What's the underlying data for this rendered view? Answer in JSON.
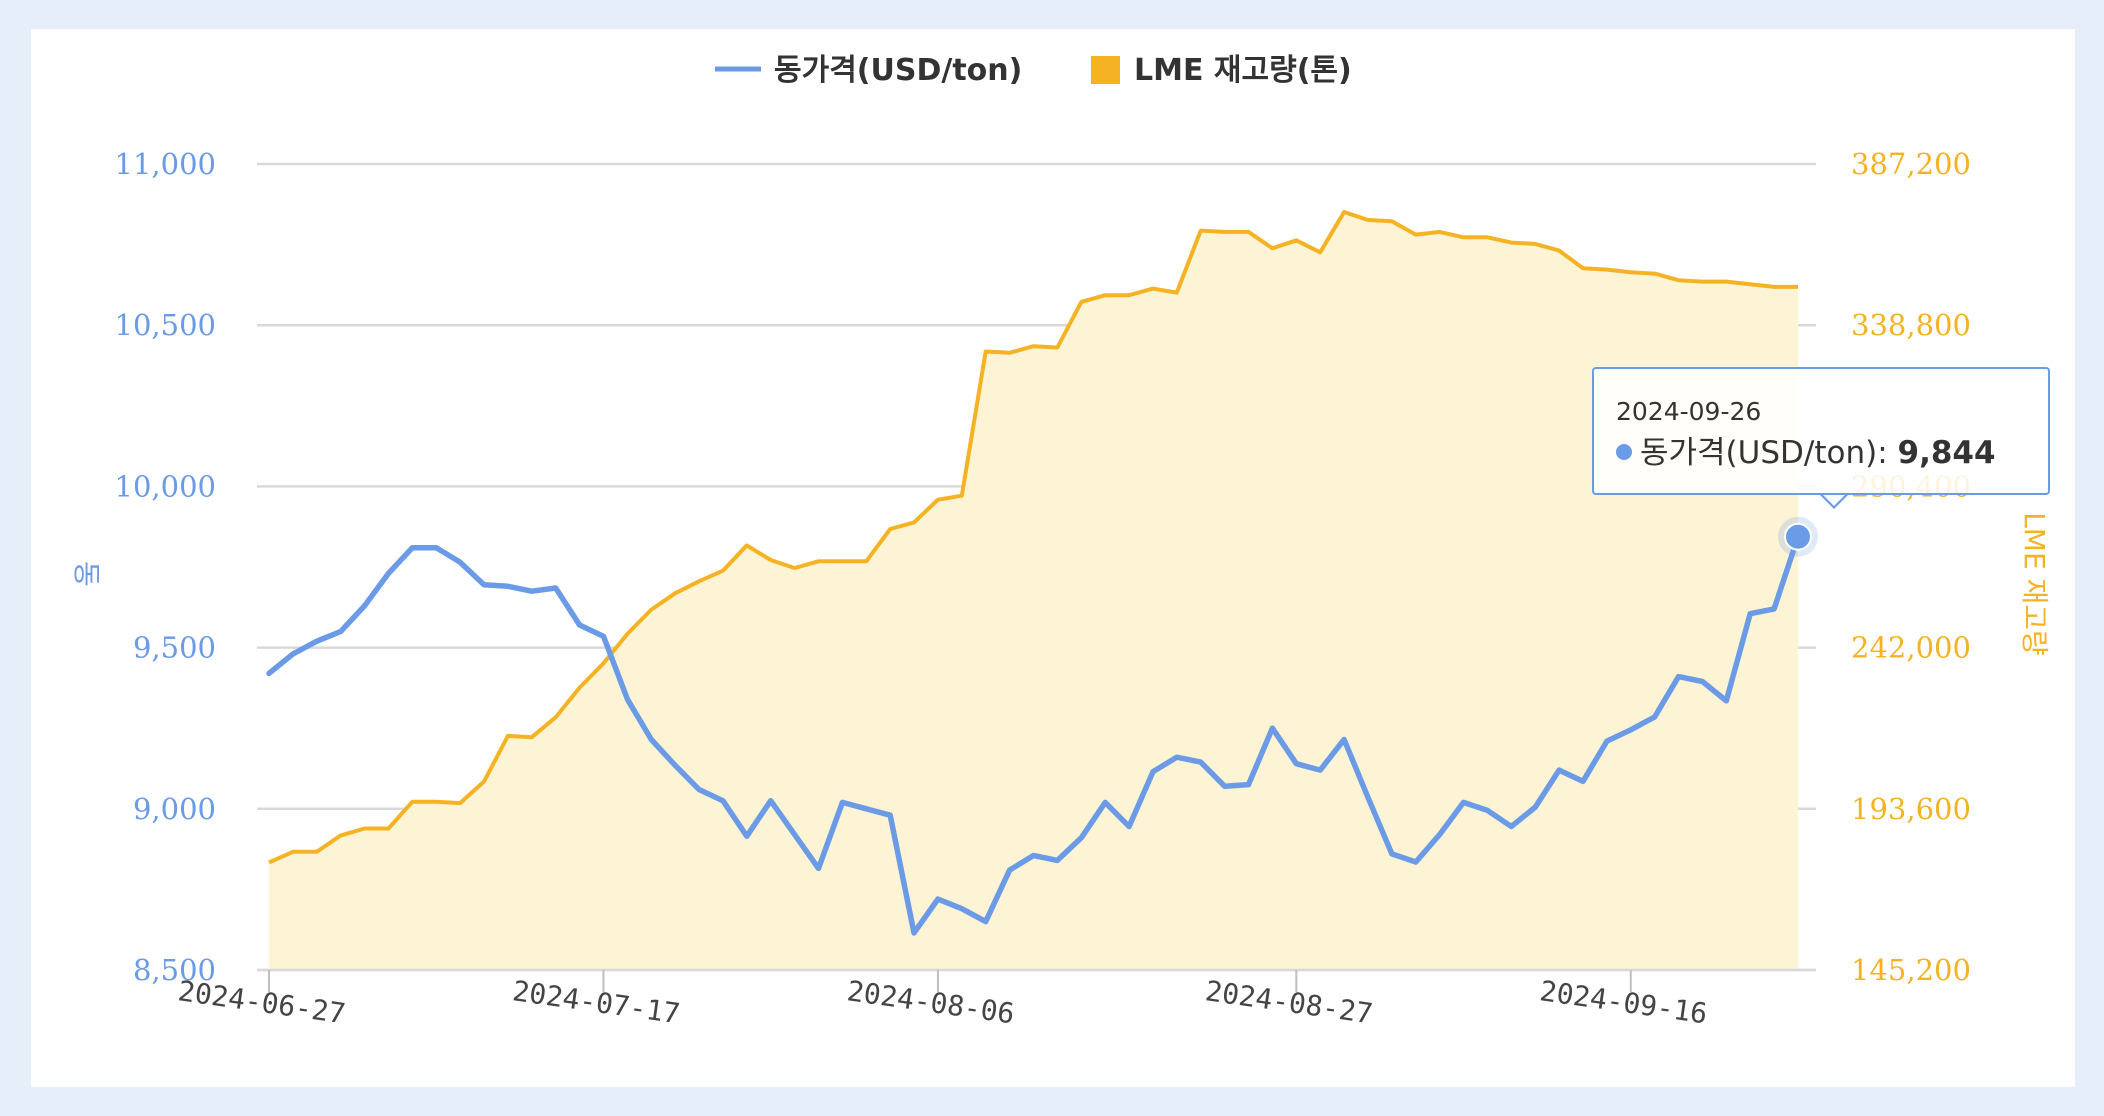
{
  "chart_data": {
    "type": "line",
    "legend": {
      "placement": "top-center",
      "items": [
        "동가격(USD/ton)",
        "LME 재고량(톤)"
      ]
    },
    "grid": true,
    "x_ticks": [
      "2024-06-27",
      "2024-07-17",
      "2024-08-06",
      "2024-08-27",
      "2024-09-16"
    ],
    "y_left": {
      "label": "동",
      "ticks": [
        "11,000",
        "10,500",
        "10,000",
        "9,500",
        "9,000",
        "8,500"
      ],
      "range": [
        8500,
        11000
      ],
      "color": "#6b9be6"
    },
    "y_right": {
      "label": "LME 재고량",
      "ticks": [
        "387,200",
        "338,800",
        "290,400",
        "242,000",
        "193,600",
        "145,200"
      ],
      "range": [
        145200,
        387200
      ],
      "color": "#f5b324"
    },
    "series": [
      {
        "name": "동가격(USD/ton)",
        "axis": "left",
        "type": "line",
        "color": "#6b9be6",
        "values": [
          9420,
          9480,
          9520,
          9550,
          9630,
          9730,
          9810,
          9810,
          9765,
          9695,
          9690,
          9675,
          9685,
          9570,
          9535,
          9340,
          9215,
          9135,
          9060,
          9025,
          8915,
          9025,
          8920,
          8815,
          9020,
          9000,
          8980,
          8615,
          8720,
          8690,
          8650,
          8810,
          8855,
          8840,
          8910,
          9020,
          8945,
          9115,
          9160,
          9145,
          9070,
          9075,
          9250,
          9140,
          9120,
          9215,
          9035,
          8860,
          8835,
          8920,
          9020,
          8995,
          8945,
          9005,
          9120,
          9085,
          9210,
          9245,
          9285,
          9410,
          9395,
          9335,
          9605,
          9620,
          9844
        ]
      },
      {
        "name": "LME 재고량(톤)",
        "axis": "right",
        "type": "area",
        "color": "#f5b324",
        "values": [
          177500,
          180700,
          180700,
          185600,
          187700,
          187700,
          195700,
          195700,
          195300,
          201800,
          215500,
          215100,
          221100,
          230000,
          237300,
          246100,
          253400,
          258300,
          261900,
          265100,
          272700,
          268300,
          265900,
          267900,
          267900,
          267900,
          277600,
          279600,
          286400,
          287600,
          330900,
          330500,
          332500,
          332100,
          345800,
          347800,
          347800,
          349800,
          348600,
          367200,
          366800,
          366800,
          361900,
          364300,
          360700,
          372800,
          370400,
          370000,
          366000,
          366800,
          365200,
          365200,
          363600,
          363200,
          361200,
          355900,
          355500,
          354700,
          354300,
          352300,
          351900,
          351900,
          351100,
          350300,
          350300
        ]
      }
    ],
    "tooltip": {
      "date": "2024-09-26",
      "series": "동가격(USD/ton)",
      "value": "9,844"
    }
  }
}
